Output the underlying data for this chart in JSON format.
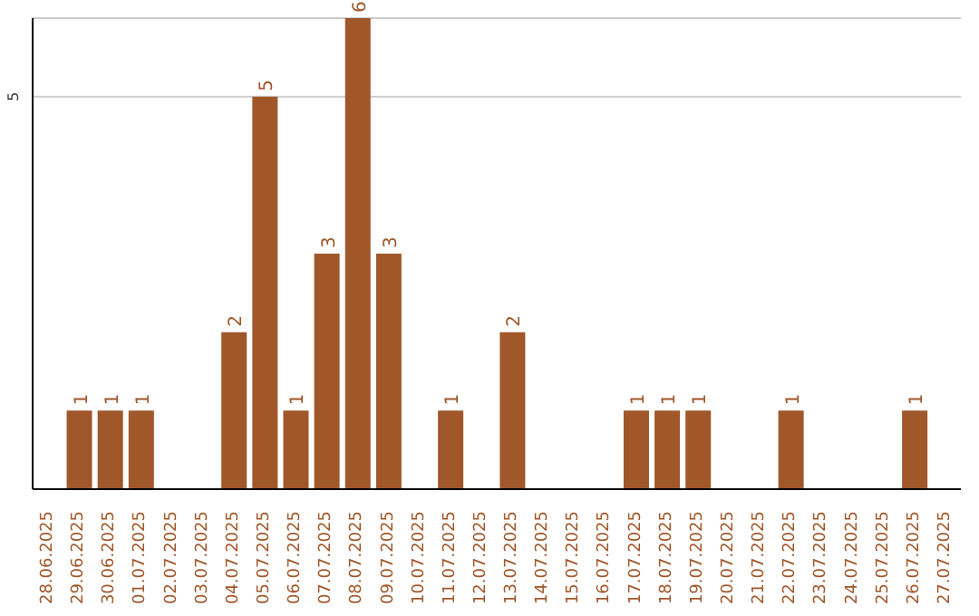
{
  "chart_data": {
    "type": "bar",
    "categories": [
      "28.06.2025",
      "29.06.2025",
      "30.06.2025",
      "01.07.2025",
      "02.07.2025",
      "03.07.2025",
      "04.07.2025",
      "05.07.2025",
      "06.07.2025",
      "07.07.2025",
      "08.07.2025",
      "09.07.2025",
      "10.07.2025",
      "11.07.2025",
      "12.07.2025",
      "13.07.2025",
      "14.07.2025",
      "15.07.2025",
      "16.07.2025",
      "17.07.2025",
      "18.07.2025",
      "19.07.2025",
      "20.07.2025",
      "21.07.2025",
      "22.07.2025",
      "23.07.2025",
      "24.07.2025",
      "25.07.2025",
      "26.07.2025",
      "27.07.2025"
    ],
    "values": [
      0,
      1,
      1,
      1,
      0,
      0,
      2,
      5,
      1,
      3,
      6,
      3,
      0,
      1,
      0,
      2,
      0,
      0,
      0,
      1,
      1,
      1,
      0,
      0,
      1,
      0,
      0,
      0,
      1,
      0
    ],
    "value_labels": [
      null,
      "1",
      "1",
      "1",
      null,
      null,
      "2",
      "5",
      "1",
      "3",
      "6",
      "3",
      null,
      "1",
      null,
      "2",
      null,
      null,
      null,
      "1",
      "1",
      "1",
      null,
      null,
      "1",
      null,
      null,
      null,
      "1",
      null
    ],
    "color": "#a0572a",
    "ylim": [
      0,
      6
    ],
    "yticks": [
      5
    ],
    "grid": "y"
  }
}
